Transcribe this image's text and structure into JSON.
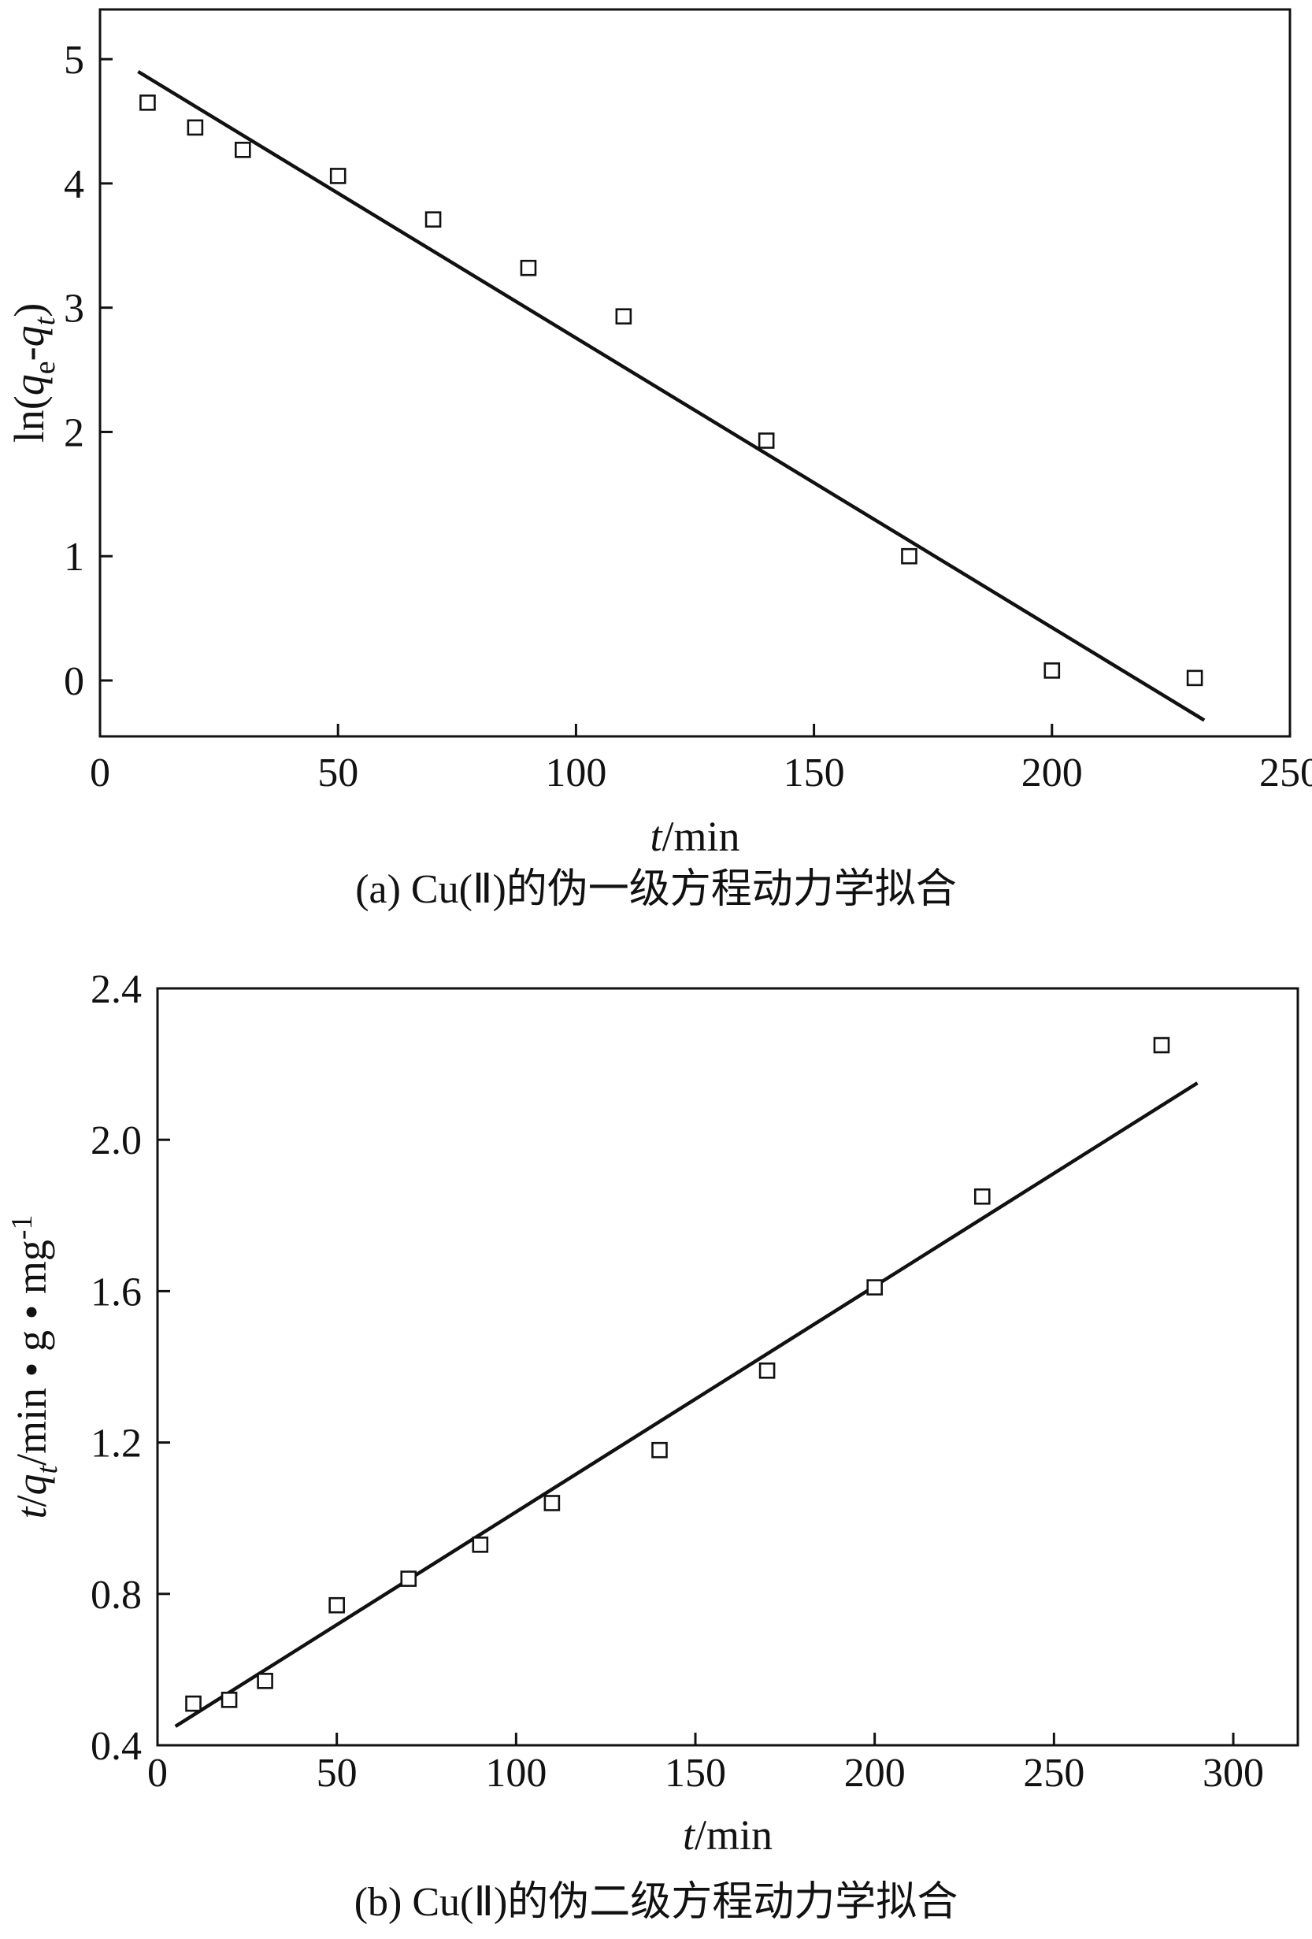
{
  "page": {
    "background": "#ffffff",
    "ink": "#111111"
  },
  "chart_data": [
    {
      "id": "pseudo-first-order",
      "type": "scatter",
      "caption": "(a) Cu(Ⅱ)的伪一级方程动力学拟合",
      "xlabel": "t/min",
      "ylabel": "ln(qe-qt)",
      "xlabel_segments": [
        {
          "text": "t",
          "italic": true
        },
        {
          "text": "/min"
        }
      ],
      "ylabel_segments": [
        {
          "text": "ln("
        },
        {
          "text": "q",
          "italic": true
        },
        {
          "text": "e",
          "sub": true
        },
        {
          "text": "-"
        },
        {
          "text": "q",
          "italic": true
        },
        {
          "text": "t",
          "sub": true,
          "italic": true
        },
        {
          "text": ")"
        }
      ],
      "xlim": [
        0,
        250
      ],
      "ylim": [
        -0.45,
        5.4
      ],
      "xticks": [
        "0",
        "50",
        "100",
        "150",
        "200",
        "250"
      ],
      "yticks": [
        "0",
        "1",
        "2",
        "3",
        "4",
        "5"
      ],
      "grid": false,
      "legend": "none",
      "marker": "open-square",
      "points": [
        [
          10,
          4.65
        ],
        [
          20,
          4.45
        ],
        [
          30,
          4.27
        ],
        [
          50,
          4.06
        ],
        [
          70,
          3.71
        ],
        [
          90,
          3.32
        ],
        [
          110,
          2.93
        ],
        [
          140,
          1.93
        ],
        [
          170,
          1.0
        ],
        [
          200,
          0.08
        ],
        [
          230,
          0.02
        ]
      ],
      "fit_line": [
        [
          8,
          4.9
        ],
        [
          232,
          -0.32
        ]
      ]
    },
    {
      "id": "pseudo-second-order",
      "type": "scatter",
      "caption": "(b) Cu(Ⅱ)的伪二级方程动力学拟合",
      "xlabel": "t/min",
      "ylabel": "t/qt/min • g • mg-1",
      "xlabel_segments": [
        {
          "text": "t",
          "italic": true
        },
        {
          "text": "/min"
        }
      ],
      "ylabel_segments": [
        {
          "text": "t",
          "italic": true
        },
        {
          "text": "/"
        },
        {
          "text": "q",
          "italic": true
        },
        {
          "text": "t",
          "sub": true,
          "italic": true
        },
        {
          "text": "/min"
        },
        {
          "text": " • "
        },
        {
          "text": "g"
        },
        {
          "text": " • "
        },
        {
          "text": "mg"
        },
        {
          "text": "-1",
          "sup": true
        }
      ],
      "xlim": [
        0,
        318
      ],
      "ylim": [
        0.4,
        2.4
      ],
      "xticks": [
        "0",
        "50",
        "100",
        "150",
        "200",
        "250",
        "300"
      ],
      "yticks": [
        "0.4",
        "0.8",
        "1.2",
        "1.6",
        "2.0",
        "2.4"
      ],
      "grid": false,
      "legend": "none",
      "marker": "open-square",
      "points": [
        [
          10,
          0.51
        ],
        [
          20,
          0.52
        ],
        [
          30,
          0.57
        ],
        [
          50,
          0.77
        ],
        [
          70,
          0.84
        ],
        [
          90,
          0.93
        ],
        [
          110,
          1.04
        ],
        [
          140,
          1.18
        ],
        [
          170,
          1.39
        ],
        [
          200,
          1.61
        ],
        [
          230,
          1.85
        ],
        [
          280,
          2.25
        ]
      ],
      "fit_line": [
        [
          5,
          0.45
        ],
        [
          290,
          2.15
        ]
      ]
    }
  ]
}
